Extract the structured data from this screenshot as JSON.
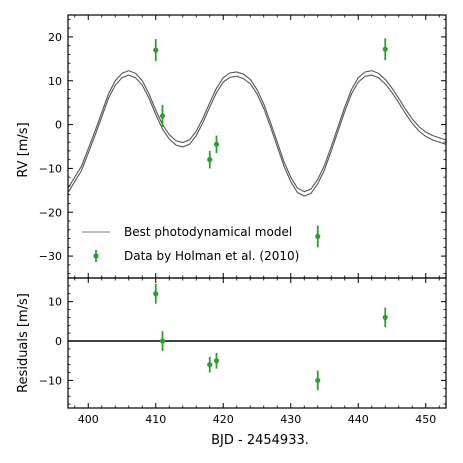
{
  "chart_data": [
    {
      "panel": "top",
      "type": "scatter",
      "ylabel": "RV [m/s]",
      "xlim": [
        397,
        453
      ],
      "ylim": [
        -35,
        25
      ],
      "xticks": [
        400,
        410,
        420,
        430,
        440,
        450
      ],
      "yticks": [
        -30,
        -20,
        -10,
        0,
        10,
        20
      ],
      "xtick_labels": [
        "",
        "",
        "",
        "",
        "",
        ""
      ],
      "ytick_labels": [
        "−30",
        "−20",
        "−10",
        "0",
        "10",
        "20"
      ],
      "legend": {
        "location": "lower-left",
        "entries": [
          "Best photodynamical model",
          "Data by Holman et al. (2010)"
        ]
      },
      "series": [
        {
          "name": "Best photodynamical model",
          "kind": "line",
          "color": "#555555",
          "x": [
            397,
            399,
            401,
            403,
            404,
            405,
            406,
            407,
            408,
            409,
            410,
            411,
            412,
            413,
            414,
            415,
            416,
            417,
            418,
            419,
            420,
            421,
            422,
            423,
            424,
            425,
            426,
            427,
            428,
            429,
            430,
            431,
            432,
            433,
            434,
            435,
            436,
            437,
            438,
            439,
            440,
            441,
            442,
            443,
            444,
            445,
            446,
            447,
            448,
            449,
            450,
            451,
            452,
            453
          ],
          "y": [
            -15,
            -10,
            -2,
            6.5,
            9.5,
            11.2,
            11.8,
            11.2,
            9.5,
            6.5,
            2.8,
            -0.5,
            -2.8,
            -4.2,
            -4.6,
            -4.0,
            -2.0,
            1.0,
            4.5,
            7.8,
            10.2,
            11.3,
            11.5,
            11.0,
            9.8,
            7.5,
            4.2,
            0.0,
            -4.5,
            -9.0,
            -12.5,
            -15.0,
            -15.8,
            -15.2,
            -13.0,
            -9.8,
            -5.5,
            -1.0,
            3.5,
            7.5,
            10.2,
            11.5,
            11.8,
            11.2,
            9.8,
            7.8,
            5.5,
            3.0,
            0.8,
            -1.0,
            -2.2,
            -3.0,
            -3.5,
            -4.0
          ],
          "band_width": 1.0
        },
        {
          "name": "Data by Holman et al. (2010)",
          "kind": "errorbar",
          "color": "#2ca02c",
          "x": [
            410,
            411,
            418,
            419,
            434,
            444
          ],
          "y": [
            17,
            2,
            -8,
            -4.5,
            -25.5,
            17.2
          ],
          "yerr": [
            2.5,
            2.5,
            2,
            2,
            2.5,
            2.5
          ]
        }
      ]
    },
    {
      "panel": "bottom",
      "type": "scatter",
      "xlabel": "BJD - 2454933.",
      "ylabel": "Residuals [m/s]",
      "xlim": [
        397,
        453
      ],
      "ylim": [
        -17,
        16
      ],
      "xticks": [
        400,
        410,
        420,
        430,
        440,
        450
      ],
      "yticks": [
        -10,
        0,
        10
      ],
      "xtick_labels": [
        "400",
        "410",
        "420",
        "430",
        "440",
        "450"
      ],
      "ytick_labels": [
        "−10",
        "0",
        "10"
      ],
      "reference_line": 0,
      "series": [
        {
          "kind": "errorbar",
          "color": "#2ca02c",
          "x": [
            410,
            411,
            418,
            419,
            434,
            444
          ],
          "y": [
            12,
            0,
            -6,
            -5,
            -10,
            6
          ],
          "yerr": [
            2.5,
            2.5,
            2,
            2,
            2.5,
            2.5
          ]
        }
      ]
    }
  ]
}
